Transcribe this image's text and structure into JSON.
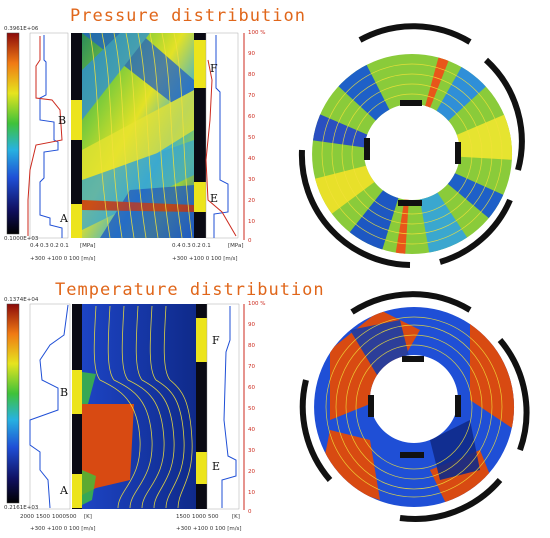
{
  "panels": [
    {
      "title": "Pressure distribution",
      "scale_max": "0.3961E+06",
      "scale_min": "0.1000E+03",
      "left_axis": [
        "0.4",
        "0.3",
        "0.2",
        "0.1"
      ],
      "left_unit": "[MPa]",
      "right_axis": [
        "0.4",
        "0.3",
        "0.2",
        "0.1"
      ],
      "right_unit": "[MPa]",
      "vel_axis_left": "+300 +100  0  100 [m/s]",
      "vel_axis_right": "+300 +100  0  100 [m/s]",
      "percent_ticks": [
        "0",
        "10",
        "20",
        "30",
        "40",
        "50",
        "60",
        "70",
        "80",
        "90",
        "100 %"
      ],
      "zone_labels": [
        "A",
        "B",
        "E",
        "F"
      ]
    },
    {
      "title": "Temperature distribution",
      "scale_max": "0.1374E+04",
      "scale_min": "0.2161E+03",
      "left_axis": [
        "2000",
        "1500",
        "1000",
        "500"
      ],
      "left_unit": "[K]",
      "right_axis": [
        "1500",
        "1000",
        "500"
      ],
      "right_unit": "[K]",
      "vel_axis_left": "+300 +100  0  100 [m/s]",
      "vel_axis_right": "+300 +100  0  100 [m/s]",
      "percent_ticks": [
        "0",
        "10",
        "20",
        "30",
        "40",
        "50",
        "60",
        "70",
        "80",
        "90",
        "100 %"
      ],
      "zone_labels": [
        "A",
        "B",
        "E",
        "F"
      ]
    }
  ],
  "colors": {
    "title": "#e0661a",
    "axis_red": "#cc2a1e",
    "curve_blue": "#1f4fd6",
    "contour_yellow": "#f2e23a"
  }
}
